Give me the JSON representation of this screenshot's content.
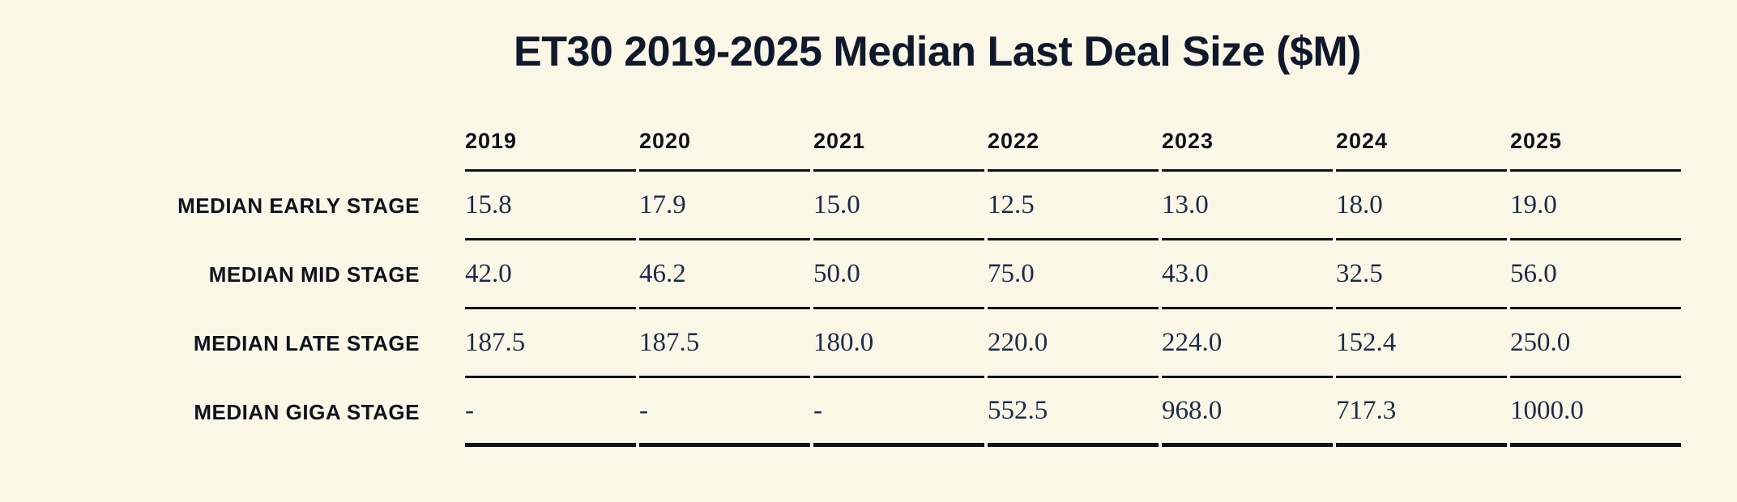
{
  "page": {
    "background_color": "#FAF7E7",
    "text_dark_color": "#0E131D",
    "number_color": "#1C2B4A",
    "line_color": "#0D1218"
  },
  "title": "ET30 2019-2025 Median Last Deal Size ($M)",
  "chart_data": {
    "type": "table",
    "title": "ET30 2019-2025 Median Last Deal Size ($M)",
    "unit": "$M",
    "columns": [
      "2019",
      "2020",
      "2021",
      "2022",
      "2023",
      "2024",
      "2025"
    ],
    "rows": [
      {
        "label": "MEDIAN EARLY STAGE",
        "values": [
          "15.8",
          "17.9",
          "15.0",
          "12.5",
          "13.0",
          "18.0",
          "19.0"
        ]
      },
      {
        "label": "MEDIAN MID STAGE",
        "values": [
          "42.0",
          "46.2",
          "50.0",
          "75.0",
          "43.0",
          "32.5",
          "56.0"
        ]
      },
      {
        "label": "MEDIAN LATE STAGE",
        "values": [
          "187.5",
          "187.5",
          "180.0",
          "220.0",
          "224.0",
          "152.4",
          "250.0"
        ]
      },
      {
        "label": "MEDIAN GIGA STAGE",
        "values": [
          "-",
          "-",
          "-",
          "552.5",
          "968.0",
          "717.3",
          "1000.0"
        ]
      }
    ],
    "missing_marker": "-",
    "layout": {
      "grid": "horizontal-rules-only",
      "label_column_align": "right",
      "value_align": "left"
    }
  }
}
